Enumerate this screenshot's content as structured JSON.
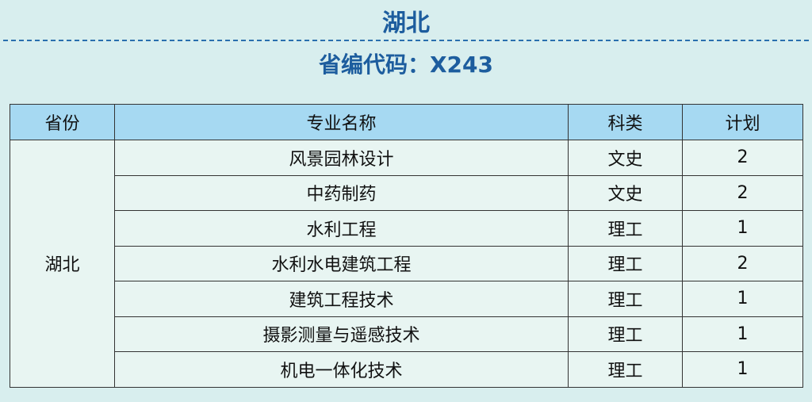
{
  "title": "湖北",
  "code_line": "省编代码：X243",
  "colors": {
    "background": "#d8eeee",
    "header": "#a6d9f2",
    "title": "#1d5d9e"
  },
  "table": {
    "headers": [
      "省份",
      "专业名称",
      "科类",
      "计划"
    ],
    "province": "湖北",
    "rows": [
      {
        "major": "风景园林设计",
        "category": "文史",
        "plan": "2"
      },
      {
        "major": "中药制药",
        "category": "文史",
        "plan": "2"
      },
      {
        "major": "水利工程",
        "category": "理工",
        "plan": "1"
      },
      {
        "major": "水利水电建筑工程",
        "category": "理工",
        "plan": "2"
      },
      {
        "major": "建筑工程技术",
        "category": "理工",
        "plan": "1"
      },
      {
        "major": "摄影测量与遥感技术",
        "category": "理工",
        "plan": "1"
      },
      {
        "major": "机电一体化技术",
        "category": "理工",
        "plan": "1"
      }
    ]
  }
}
